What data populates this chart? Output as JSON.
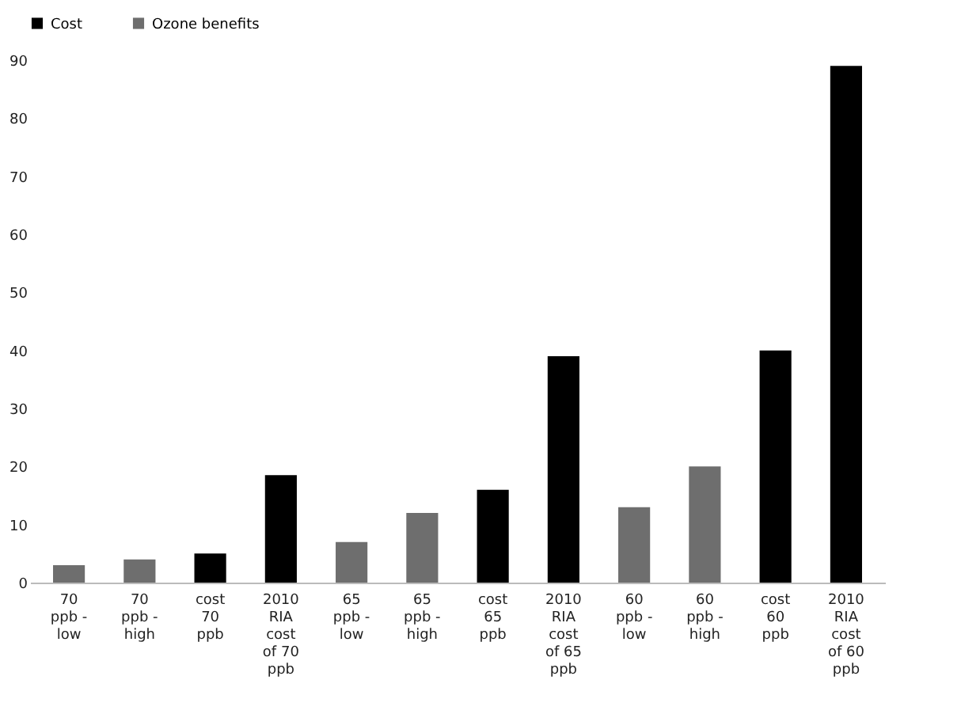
{
  "chart_data": {
    "type": "bar",
    "categories": [
      "70 ppb - low",
      "70 ppb - high",
      "cost 70 ppb",
      "2010 RIA cost of 70 ppb",
      "65 ppb - low",
      "65 ppb - high",
      "cost 65 ppb",
      "2010 RIA cost of 65 ppb",
      "60 ppb - low",
      "60 ppb - high",
      "cost 60 ppb",
      "2010 RIA cost of 60 ppb"
    ],
    "series": [
      {
        "name": "Cost",
        "color": "#000000",
        "values": [
          null,
          null,
          5,
          18.5,
          null,
          null,
          16,
          39,
          null,
          null,
          40,
          89
        ]
      },
      {
        "name": "Ozone benefits",
        "color": "#6e6e6e",
        "values": [
          3,
          4,
          null,
          null,
          7,
          12,
          null,
          null,
          13,
          20,
          null,
          null
        ]
      }
    ],
    "ylim": [
      0,
      90
    ],
    "yticks": [
      0,
      10,
      20,
      30,
      40,
      50,
      60,
      70,
      80,
      90
    ],
    "grid": false,
    "legend": "top"
  }
}
